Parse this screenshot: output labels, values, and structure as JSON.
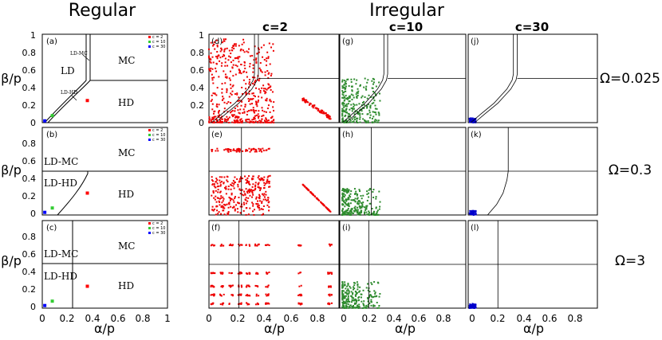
{
  "headers": {
    "regular": "Regular",
    "irregular": "Irregular"
  },
  "columns": [
    {
      "label": "c=2",
      "color": "#ff0000"
    },
    {
      "label": "c=10",
      "color": "#2e7d32"
    },
    {
      "label": "c=30",
      "color": "#1a237e"
    }
  ],
  "omegas": [
    "Ω=0.025",
    "Ω=0.3",
    "Ω=3"
  ],
  "axes": {
    "ylabel": "β/p",
    "xlabel": "α/p",
    "yticks": [
      "0",
      "0.2",
      "0.4",
      "0.6",
      "0.8",
      "1"
    ],
    "xticks_regular": [
      "0",
      "0.2",
      "0.4",
      "0.6",
      "0.8",
      "1"
    ],
    "xticks_irregular": [
      "0",
      "0.2",
      "0.4",
      "0.6",
      "0.8"
    ]
  },
  "legend": [
    "c = 2",
    "c = 10",
    "c = 30"
  ],
  "chart_data": [
    {
      "type": "scatter",
      "panel": "a",
      "omega": 0.025,
      "phase_labels": [
        "LD",
        "MC",
        "HD",
        "LD-MC",
        "LD-HD"
      ],
      "series": [
        {
          "name": "c = 2",
          "points": [
            [
              0.36,
              0.25
            ]
          ]
        },
        {
          "name": "c = 10",
          "points": [
            [
              0.08,
              0.08
            ]
          ]
        },
        {
          "name": "c = 30",
          "points": [
            [
              0.02,
              0.02
            ]
          ]
        }
      ],
      "xlim": [
        0,
        1
      ],
      "ylim": [
        0,
        1
      ]
    },
    {
      "type": "scatter",
      "panel": "b",
      "omega": 0.3,
      "phase_labels": [
        "MC",
        "HD",
        "LD-MC",
        "LD-HD"
      ],
      "series": [
        {
          "name": "c = 2",
          "points": [
            [
              0.36,
              0.25
            ]
          ]
        },
        {
          "name": "c = 10",
          "points": [
            [
              0.08,
              0.08
            ]
          ]
        },
        {
          "name": "c = 30",
          "points": [
            [
              0.02,
              0.03
            ]
          ]
        }
      ],
      "xlim": [
        0,
        1
      ],
      "ylim": [
        0,
        1
      ]
    },
    {
      "type": "scatter",
      "panel": "c",
      "omega": 3,
      "phase_labels": [
        "MC",
        "HD",
        "LD-MC",
        "LD-HD"
      ],
      "series": [
        {
          "name": "c = 2",
          "points": [
            [
              0.36,
              0.25
            ]
          ]
        },
        {
          "name": "c = 10",
          "points": [
            [
              0.08,
              0.08
            ]
          ]
        },
        {
          "name": "c = 30",
          "points": [
            [
              0.02,
              0.03
            ]
          ]
        }
      ],
      "xlim": [
        0,
        1
      ],
      "ylim": [
        0,
        1
      ]
    },
    {
      "type": "scatter",
      "panel": "d",
      "omega": 0.025,
      "c": 2,
      "xlim": [
        0,
        1
      ],
      "ylim": [
        0,
        1
      ]
    },
    {
      "type": "scatter",
      "panel": "e",
      "omega": 0.3,
      "c": 2,
      "xlim": [
        0,
        1
      ],
      "ylim": [
        0,
        1
      ]
    },
    {
      "type": "scatter",
      "panel": "f",
      "omega": 3,
      "c": 2,
      "xlim": [
        0,
        1
      ],
      "ylim": [
        0,
        1
      ]
    },
    {
      "type": "scatter",
      "panel": "g",
      "omega": 0.025,
      "c": 10,
      "xlim": [
        0,
        1
      ],
      "ylim": [
        0,
        1
      ]
    },
    {
      "type": "scatter",
      "panel": "h",
      "omega": 0.3,
      "c": 10,
      "xlim": [
        0,
        1
      ],
      "ylim": [
        0,
        1
      ]
    },
    {
      "type": "scatter",
      "panel": "i",
      "omega": 3,
      "c": 10,
      "xlim": [
        0,
        1
      ],
      "ylim": [
        0,
        1
      ]
    },
    {
      "type": "scatter",
      "panel": "j",
      "omega": 0.025,
      "c": 30,
      "xlim": [
        0,
        1
      ],
      "ylim": [
        0,
        1
      ]
    },
    {
      "type": "scatter",
      "panel": "k",
      "omega": 0.3,
      "c": 30,
      "xlim": [
        0,
        1
      ],
      "ylim": [
        0,
        1
      ]
    },
    {
      "type": "scatter",
      "panel": "l",
      "omega": 3,
      "c": 30,
      "xlim": [
        0,
        1
      ],
      "ylim": [
        0,
        1
      ]
    }
  ]
}
